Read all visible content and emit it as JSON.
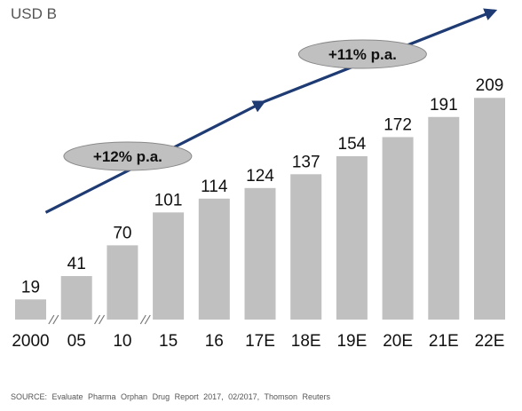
{
  "chart_data": {
    "type": "bar",
    "unit_label": "USD B",
    "categories": [
      "2000",
      "05",
      "10",
      "15",
      "16",
      "17E",
      "18E",
      "19E",
      "20E",
      "21E",
      "22E"
    ],
    "values": [
      19,
      41,
      70,
      101,
      114,
      124,
      137,
      154,
      172,
      191,
      209
    ],
    "axis_breaks_after": [
      "2000",
      "05",
      "10"
    ],
    "bar_color": "#c0c0c0",
    "arrow_color": "#1f3b73",
    "annotations": [
      {
        "text": "+12% p.a.",
        "segment": "early"
      },
      {
        "text": "+11% p.a.",
        "segment": "late"
      }
    ],
    "grid": false,
    "legend": "none"
  },
  "source_text": "SOURCE:  Evaluate  Pharma Orphan Drug Report 2017, 02/2017, Thomson  Reuters"
}
